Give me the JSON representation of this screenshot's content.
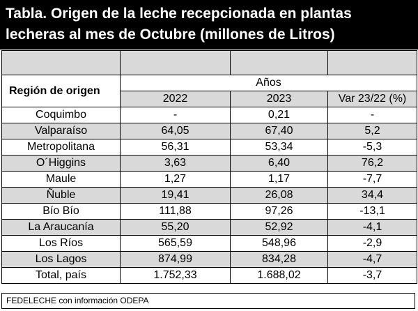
{
  "title": {
    "line1": "Tabla. Origen de la leche recepcionada en plantas",
    "line2": "lecheras al mes de Octubre (millones de Litros)"
  },
  "header": {
    "region": "Región de origen",
    "years": "Años",
    "col_2022": "2022",
    "col_2023": "2023",
    "col_var": "Var 23/22 (%)"
  },
  "rows": [
    {
      "region": "Coquimbo",
      "v2022": "-",
      "v2023": "0,21",
      "var": "-"
    },
    {
      "region": "Valparaíso",
      "v2022": "64,05",
      "v2023": "67,40",
      "var": "5,2"
    },
    {
      "region": "Metropolitana",
      "v2022": "56,31",
      "v2023": "53,34",
      "var": "-5,3"
    },
    {
      "region": "O´Higgins",
      "v2022": "3,63",
      "v2023": "6,40",
      "var": "76,2"
    },
    {
      "region": "Maule",
      "v2022": "1,27",
      "v2023": "1,17",
      "var": "-7,7"
    },
    {
      "region": "Ñuble",
      "v2022": "19,41",
      "v2023": "26,08",
      "var": "34,4"
    },
    {
      "region": "Bío Bío",
      "v2022": "111,88",
      "v2023": "97,26",
      "var": "-13,1"
    },
    {
      "region": "La Araucanía",
      "v2022": "55,20",
      "v2023": "52,92",
      "var": "-4,1"
    },
    {
      "region": "Los Ríos",
      "v2022": "565,59",
      "v2023": "548,96",
      "var": "-2,9"
    },
    {
      "region": "Los Lagos",
      "v2022": "874,99",
      "v2023": "834,28",
      "var": "-4,7"
    },
    {
      "region": "Total, país",
      "v2022": "1.752,33",
      "v2023": "1.688,02",
      "var": "-3,7"
    }
  ],
  "footer": "FEDELECHE con información ODEPA",
  "colors": {
    "title_bg": "#000000",
    "stripe": "#d9d9d9"
  }
}
